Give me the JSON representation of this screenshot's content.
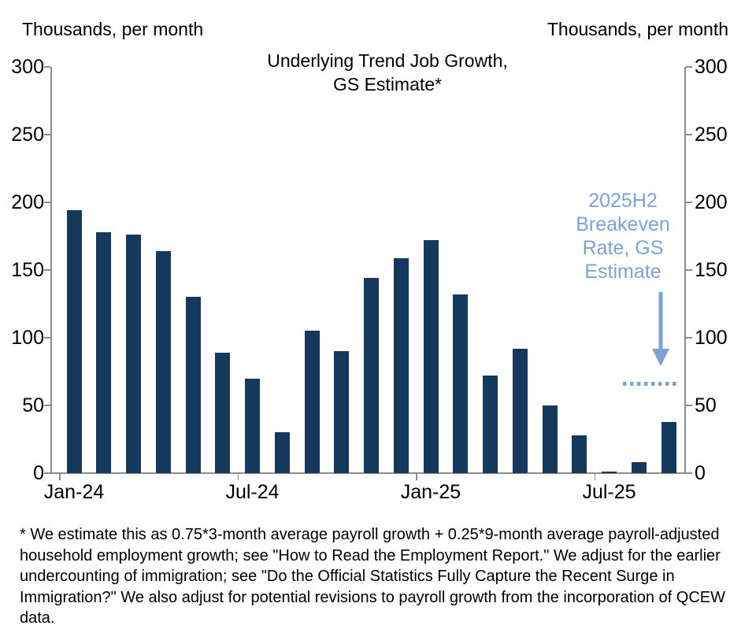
{
  "chart_data": {
    "type": "bar",
    "title": "Underlying Trend Job Growth, GS Estimate*",
    "title_lines": [
      "Underlying Trend Job Growth,",
      "GS Estimate*"
    ],
    "axis_title_left": "Thousands, per month",
    "axis_title_right": "Thousands, per month",
    "categories": [
      "Jan-24",
      "Feb-24",
      "Mar-24",
      "Apr-24",
      "May-24",
      "Jun-24",
      "Jul-24",
      "Aug-24",
      "Sep-24",
      "Oct-24",
      "Nov-24",
      "Dec-24",
      "Jan-25",
      "Feb-25",
      "Mar-25",
      "Apr-25",
      "May-25",
      "Jun-25",
      "Jul-25",
      "Aug-25",
      "Sep-25"
    ],
    "values": [
      194,
      178,
      176,
      164,
      130,
      89,
      70,
      30,
      105,
      90,
      144,
      159,
      172,
      132,
      72,
      92,
      50,
      28,
      0,
      8,
      38
    ],
    "ylim": [
      0,
      300
    ],
    "yticks": [
      0,
      50,
      100,
      150,
      200,
      250,
      300
    ],
    "xticks": [
      {
        "label": "Jan-24",
        "index": 0
      },
      {
        "label": "Jul-24",
        "index": 6
      },
      {
        "label": "Jan-25",
        "index": 12
      },
      {
        "label": "Jul-25",
        "index": 18
      }
    ],
    "grid": false,
    "legend": null,
    "bar_color": "#14395c",
    "axis_color": "#8c8c8c",
    "annotation": {
      "lines": [
        "2025H2",
        "Breakeven",
        "Rate, GS",
        "Estimate"
      ],
      "color": "#7ba3d6",
      "breakeven_value": 66
    }
  },
  "footnote": "* We estimate this as 0.75*3-month average payroll growth + 0.25*9-month average payroll-adjusted household employment growth; see \"How to Read the Employment Report.\" We adjust for the earlier undercounting of immigration; see \"Do the Official Statistics Fully Capture the Recent Surge in Immigration?\" We also adjust for potential revisions to payroll growth from the incorporation of QCEW data."
}
